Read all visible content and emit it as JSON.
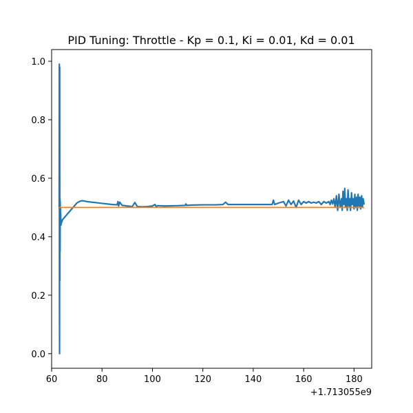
{
  "chart_data": {
    "type": "line",
    "title": "PID Tuning: Throttle - Kp = 0.1, Ki = 0.01, Kd = 0.01",
    "xlabel": "",
    "ylabel": "",
    "x_offset_label": "+1.713055e9",
    "xlim": [
      60,
      187
    ],
    "ylim": [
      -0.05,
      1.04
    ],
    "xticks": [
      60,
      80,
      100,
      120,
      140,
      160,
      180
    ],
    "yticks": [
      0.0,
      0.2,
      0.4,
      0.6,
      0.8,
      1.0
    ],
    "xtick_labels": [
      "60",
      "80",
      "100",
      "120",
      "140",
      "160",
      "180"
    ],
    "ytick_labels": [
      "0.0",
      "0.2",
      "0.4",
      "0.6",
      "0.8",
      "1.0"
    ],
    "grid": false,
    "series": [
      {
        "color": "#1f77b4",
        "x": [
          63.0,
          63.05,
          63.1,
          63.15,
          63.2,
          63.25,
          63.3,
          63.35,
          63.4,
          63.45,
          63.5,
          63.55,
          63.6,
          63.65,
          63.7,
          63.75,
          63.8,
          63.85,
          63.9,
          64.0,
          64.2,
          64.5,
          65.0,
          65.5,
          66.0,
          66.5,
          67.0,
          67.5,
          68.0,
          68.5,
          69.0,
          69.5,
          70.0,
          70.5,
          71.0,
          71.5,
          72.0,
          73.0,
          74.0,
          76.0,
          78.0,
          80.0,
          82.0,
          84.0,
          86.0,
          86.3,
          86.6,
          87.0,
          88.0,
          90.0,
          92.0,
          93.0,
          94.0,
          96.0,
          98.0,
          100.0,
          101.0,
          101.5,
          102.0,
          105.0,
          110.0,
          113.0,
          113.3,
          113.6,
          115.0,
          120.0,
          125.0,
          128.0,
          129.0,
          130.0,
          135.0,
          140.0,
          145.0,
          147.5,
          148.0,
          148.5,
          150.0,
          152.0,
          153.0,
          154.0,
          155.0,
          156.0,
          157.0,
          158.0,
          159.0,
          160.0,
          161.0,
          162.0,
          163.0,
          164.0,
          165.0,
          166.0,
          167.0,
          168.0,
          169.0,
          170.0,
          170.5,
          171.0,
          171.5,
          172.0,
          172.5,
          173.0,
          173.5,
          174.0,
          174.5,
          175.0,
          175.3,
          175.6,
          176.0,
          176.3,
          176.6,
          177.0,
          177.3,
          177.6,
          178.0,
          178.3,
          178.6,
          179.0,
          179.3,
          179.6,
          180.0,
          180.3,
          180.6,
          181.0,
          181.3,
          181.6,
          182.0,
          182.3,
          182.6,
          183.0,
          183.3,
          183.6,
          184.0
        ],
        "y": [
          0.5,
          0.99,
          0.2,
          0.0,
          0.98,
          0.25,
          0.53,
          0.35,
          0.52,
          0.44,
          0.5,
          0.44,
          0.48,
          0.45,
          0.46,
          0.44,
          0.45,
          0.445,
          0.45,
          0.45,
          0.455,
          0.46,
          0.465,
          0.47,
          0.475,
          0.48,
          0.485,
          0.49,
          0.495,
          0.5,
          0.505,
          0.51,
          0.515,
          0.518,
          0.52,
          0.522,
          0.523,
          0.522,
          0.52,
          0.518,
          0.516,
          0.514,
          0.512,
          0.51,
          0.509,
          0.52,
          0.505,
          0.518,
          0.507,
          0.505,
          0.503,
          0.517,
          0.503,
          0.502,
          0.503,
          0.505,
          0.51,
          0.503,
          0.506,
          0.505,
          0.506,
          0.507,
          0.512,
          0.507,
          0.508,
          0.509,
          0.509,
          0.51,
          0.518,
          0.51,
          0.51,
          0.51,
          0.51,
          0.51,
          0.525,
          0.51,
          0.515,
          0.52,
          0.505,
          0.525,
          0.51,
          0.522,
          0.5,
          0.525,
          0.51,
          0.52,
          0.515,
          0.52,
          0.515,
          0.518,
          0.515,
          0.52,
          0.51,
          0.52,
          0.515,
          0.52,
          0.51,
          0.525,
          0.512,
          0.53,
          0.5,
          0.54,
          0.49,
          0.545,
          0.5,
          0.53,
          0.49,
          0.555,
          0.51,
          0.565,
          0.5,
          0.53,
          0.49,
          0.56,
          0.505,
          0.53,
          0.49,
          0.55,
          0.51,
          0.53,
          0.495,
          0.545,
          0.5,
          0.535,
          0.49,
          0.545,
          0.505,
          0.535,
          0.495,
          0.54,
          0.5,
          0.53,
          0.51
        ]
      },
      {
        "color": "#ff7f0e",
        "x": [
          63.0,
          184.0
        ],
        "y": [
          0.5,
          0.5
        ]
      }
    ]
  }
}
